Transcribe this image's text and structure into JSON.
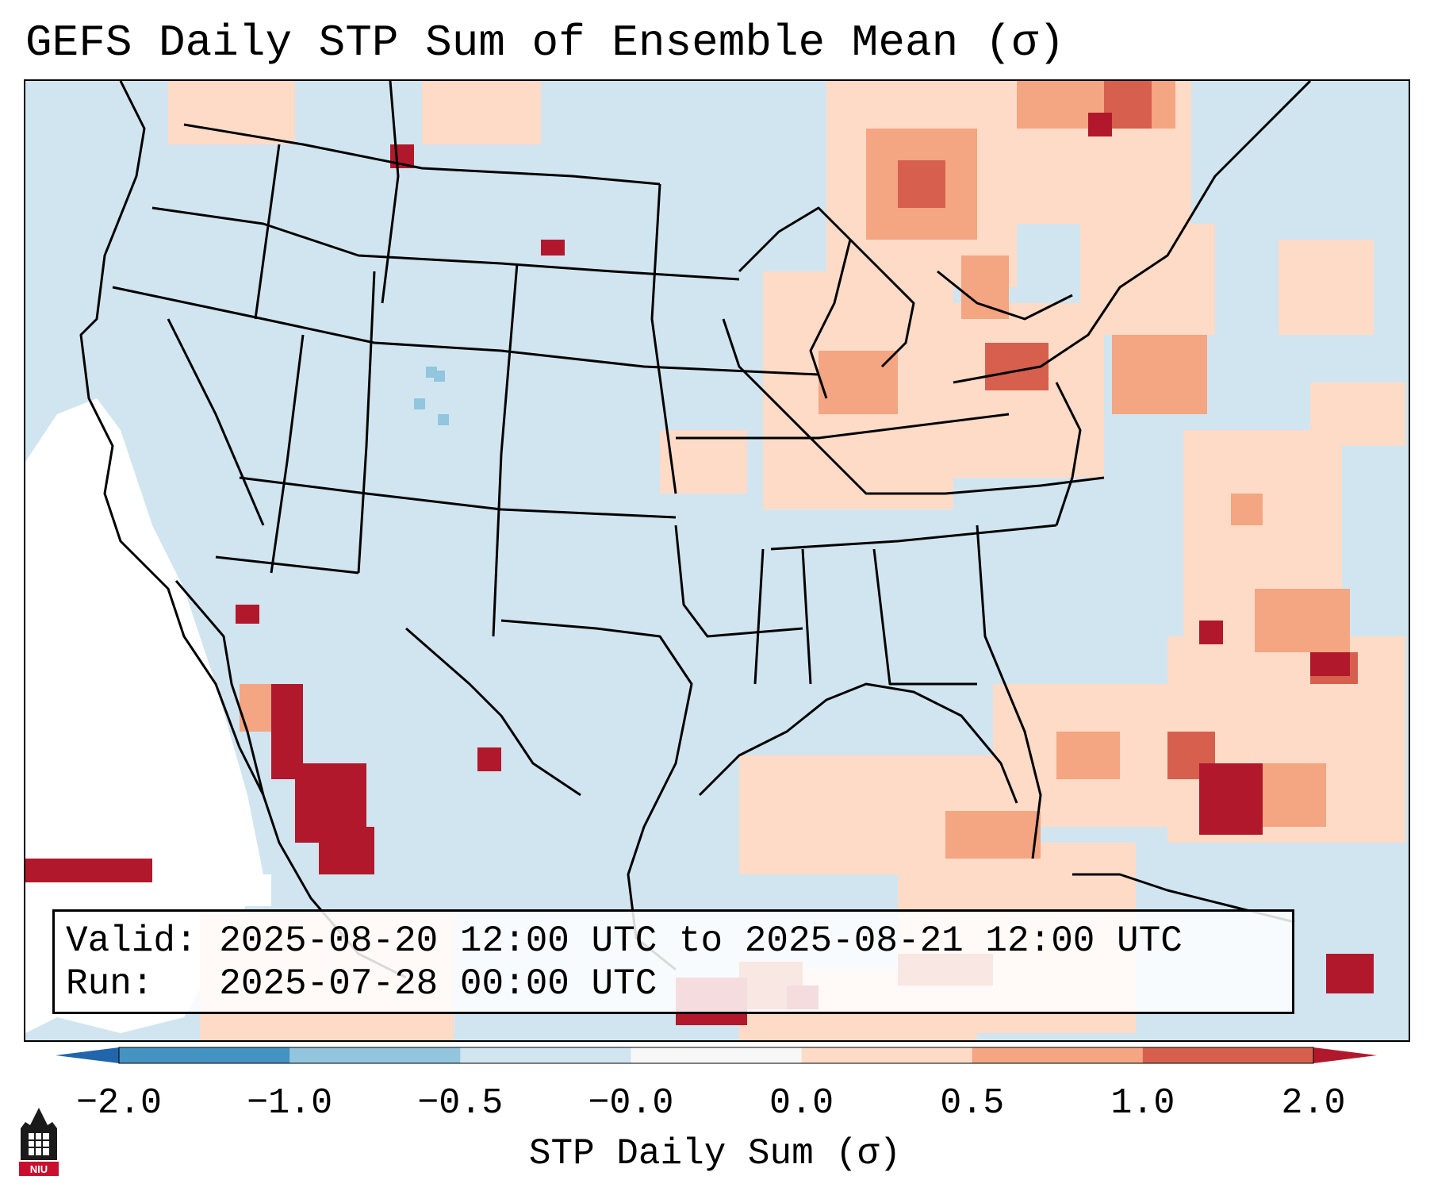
{
  "title": "GEFS Daily STP Sum of Ensemble Mean (σ)",
  "info": {
    "valid": "Valid: 2025-08-20 12:00 UTC to 2025-08-21 12:00 UTC",
    "run": "Run:   2025-07-28 00:00 UTC"
  },
  "colorbar": {
    "label": "STP Daily Sum (σ)",
    "ticks": [
      "−2.0",
      "−1.0",
      "−0.5",
      "−0.0",
      "0.0",
      "0.5",
      "1.0",
      "2.0"
    ],
    "bins": [
      "#4393c3",
      "#92c5de",
      "#d1e5f0",
      "#f7f7f7",
      "#fddbc7",
      "#f4a582",
      "#d6604d"
    ],
    "extend_low": "#2166ac",
    "extend_high": "#b2182b"
  },
  "colors": {
    "background": "#d1e5f0",
    "near_zero": "#ffffff",
    "light_pos": "#fddbc7",
    "mid_pos": "#f4a582",
    "strong_pos": "#d6604d",
    "max_pos": "#b2182b",
    "light_neg": "#92c5de"
  },
  "logo": {
    "text": "NIU",
    "icon": "niu-logo-icon"
  }
}
